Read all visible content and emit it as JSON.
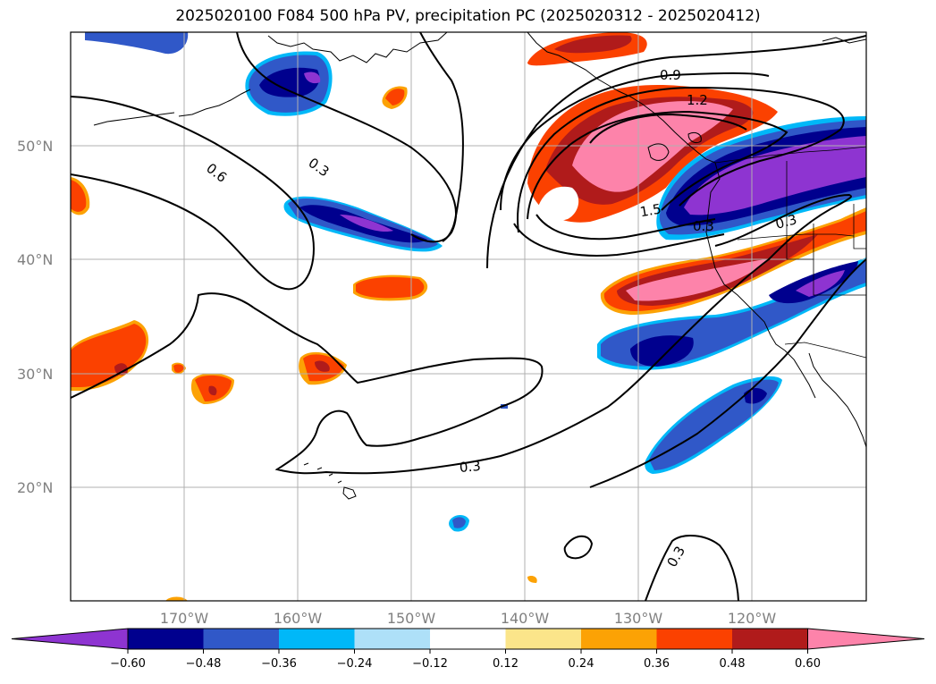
{
  "title": "2025020100 F084 500 hPa PV, precipitation PC (2025020312 - 2025020412)",
  "lat_labels": [
    "50°N",
    "40°N",
    "30°N",
    "20°N"
  ],
  "lon_labels": [
    "170°W",
    "160°W",
    "150°W",
    "140°W",
    "130°W",
    "120°W"
  ],
  "contour_labels": [
    "0.6",
    "0.3",
    "0.9",
    "1.2",
    "1.5",
    "0.3",
    "0.3",
    "0.3",
    "0.3"
  ],
  "colorbar": {
    "colors": [
      "#8e34d1",
      "#00008e",
      "#3058c8",
      "#00b8f8",
      "#aee0f8",
      "#ffffff",
      "#fbe58a",
      "#fca205",
      "#fb4100",
      "#b01b1b",
      "#fd83aa"
    ],
    "ticks": [
      "−0.60",
      "−0.48",
      "−0.36",
      "−0.24",
      "−0.12",
      "0.12",
      "0.24",
      "0.36",
      "0.48",
      "0.60"
    ]
  }
}
